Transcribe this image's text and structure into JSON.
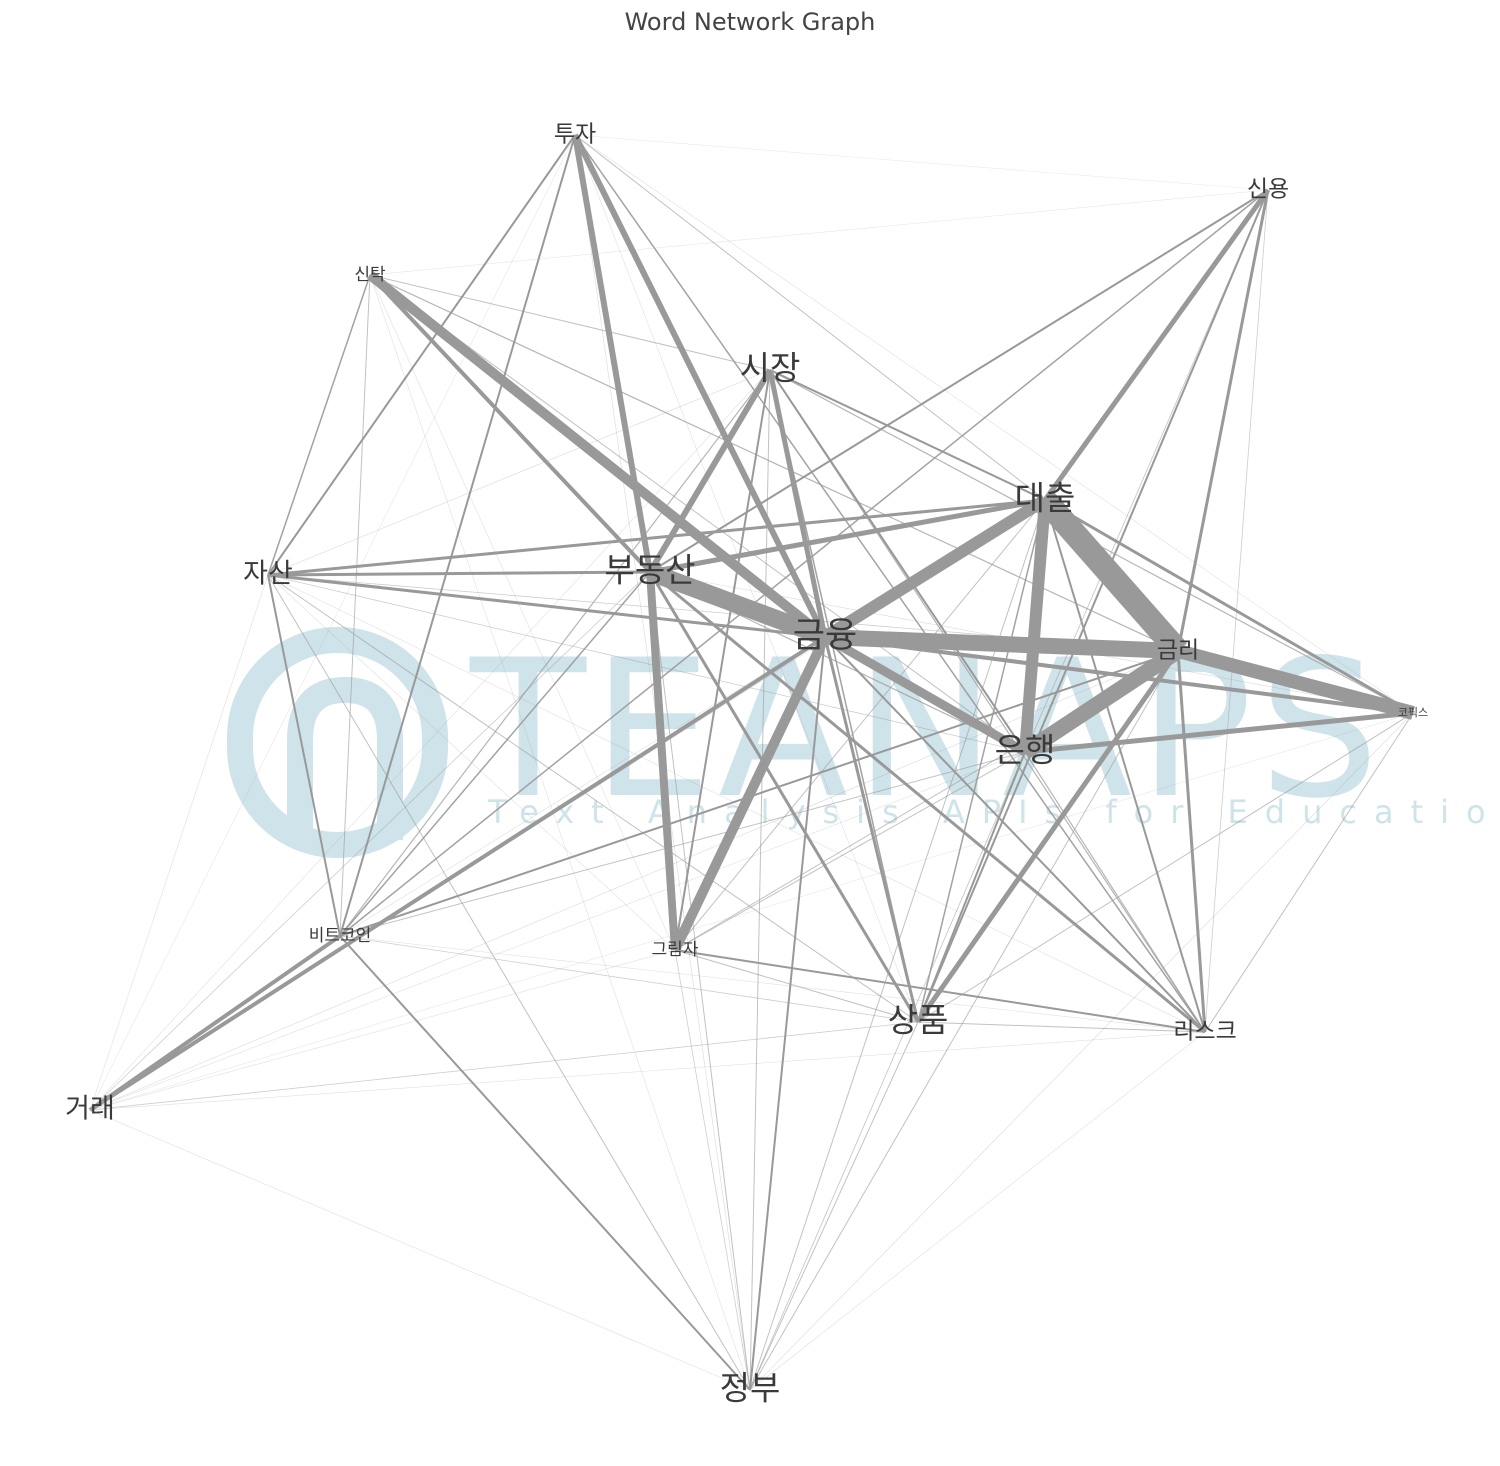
{
  "title": "Word Network Graph",
  "watermark": {
    "brand": "TEANAPS",
    "tagline": "Text Analysis APIs for Education",
    "color": "#cfe3ea"
  },
  "style": {
    "edge_color": "#999999",
    "label_color": "#3a3a3a"
  },
  "nodes": [
    {
      "id": "투자",
      "label": "투자",
      "importance": 2
    },
    {
      "id": "신용",
      "label": "신용",
      "importance": 2
    },
    {
      "id": "신탁",
      "label": "신탁",
      "importance": 1
    },
    {
      "id": "시장",
      "label": "시장",
      "importance": 4
    },
    {
      "id": "대출",
      "label": "대출",
      "importance": 4
    },
    {
      "id": "자산",
      "label": "자산",
      "importance": 3
    },
    {
      "id": "부동산",
      "label": "부동산",
      "importance": 4
    },
    {
      "id": "금융",
      "label": "금융",
      "importance": 5
    },
    {
      "id": "금리",
      "label": "금리",
      "importance": 2
    },
    {
      "id": "코픽스",
      "label": "코픽스",
      "importance": 0
    },
    {
      "id": "은행",
      "label": "은행",
      "importance": 4
    },
    {
      "id": "비트코인",
      "label": "비트코인",
      "importance": 1
    },
    {
      "id": "그림자",
      "label": "그림자",
      "importance": 1
    },
    {
      "id": "상품",
      "label": "상품",
      "importance": 4
    },
    {
      "id": "리스크",
      "label": "리스크",
      "importance": 2
    },
    {
      "id": "거래",
      "label": "거래",
      "importance": 3
    },
    {
      "id": "정부",
      "label": "정부",
      "importance": 4
    }
  ],
  "edges": [
    {
      "source": "대출",
      "target": "금리",
      "weight": 24
    },
    {
      "source": "부동산",
      "target": "금융",
      "weight": 18
    },
    {
      "source": "금융",
      "target": "금리",
      "weight": 16
    },
    {
      "source": "은행",
      "target": "금리",
      "weight": 16
    },
    {
      "source": "금리",
      "target": "코픽스",
      "weight": 14
    },
    {
      "source": "대출",
      "target": "은행",
      "weight": 12
    },
    {
      "source": "금융",
      "target": "대출",
      "weight": 12
    },
    {
      "source": "신탁",
      "target": "금융",
      "weight": 10
    },
    {
      "source": "금융",
      "target": "그림자",
      "weight": 10
    },
    {
      "source": "금융",
      "target": "은행",
      "weight": 9
    },
    {
      "source": "부동산",
      "target": "그림자",
      "weight": 8
    },
    {
      "source": "투자",
      "target": "부동산",
      "weight": 6
    },
    {
      "source": "투자",
      "target": "금융",
      "weight": 6
    },
    {
      "source": "시장",
      "target": "부동산",
      "weight": 6
    },
    {
      "source": "신용",
      "target": "대출",
      "weight": 5
    },
    {
      "source": "시장",
      "target": "금융",
      "weight": 5
    },
    {
      "source": "부동산",
      "target": "대출",
      "weight": 5
    },
    {
      "source": "금리",
      "target": "상품",
      "weight": 5
    },
    {
      "source": "은행",
      "target": "코픽스",
      "weight": 5
    },
    {
      "source": "금융",
      "target": "코픽스",
      "weight": 4
    },
    {
      "source": "신탁",
      "target": "부동산",
      "weight": 4
    },
    {
      "source": "거래",
      "target": "비트코인",
      "weight": 4
    },
    {
      "source": "거래",
      "target": "금융",
      "weight": 4
    },
    {
      "source": "자산",
      "target": "부동산",
      "weight": 3
    },
    {
      "source": "자산",
      "target": "금융",
      "weight": 3
    },
    {
      "source": "자산",
      "target": "대출",
      "weight": 3
    },
    {
      "source": "대출",
      "target": "코픽스",
      "weight": 3
    },
    {
      "source": "부동산",
      "target": "리스크",
      "weight": 3
    },
    {
      "source": "부동산",
      "target": "상품",
      "weight": 3
    },
    {
      "source": "금융",
      "target": "상품",
      "weight": 3
    },
    {
      "source": "금리",
      "target": "리스크",
      "weight": 3
    },
    {
      "source": "신용",
      "target": "금리",
      "weight": 3
    },
    {
      "source": "시장",
      "target": "은행",
      "weight": 2
    },
    {
      "source": "시장",
      "target": "그림자",
      "weight": 2
    },
    {
      "source": "시장",
      "target": "대출",
      "weight": 2
    },
    {
      "source": "신용",
      "target": "부동산",
      "weight": 2
    },
    {
      "source": "신용",
      "target": "상품",
      "weight": 2
    },
    {
      "source": "은행",
      "target": "상품",
      "weight": 2
    },
    {
      "source": "비트코인",
      "target": "금리",
      "weight": 2
    },
    {
      "source": "비트코인",
      "target": "정부",
      "weight": 2
    },
    {
      "source": "자산",
      "target": "비트코인",
      "weight": 2
    },
    {
      "source": "그림자",
      "target": "리스크",
      "weight": 2
    },
    {
      "source": "금융",
      "target": "정부",
      "weight": 2
    },
    {
      "source": "금융",
      "target": "리스크",
      "weight": 2
    },
    {
      "source": "대출",
      "target": "리스크",
      "weight": 2
    },
    {
      "source": "투자",
      "target": "자산",
      "weight": 2
    },
    {
      "source": "투자",
      "target": "비트코인",
      "weight": 2
    },
    {
      "source": "투자",
      "target": "리스크",
      "weight": 1.5
    },
    {
      "source": "투자",
      "target": "대출",
      "weight": 1
    },
    {
      "source": "투자",
      "target": "정부",
      "weight": 0.6
    },
    {
      "source": "투자",
      "target": "코픽스",
      "weight": 0.5
    },
    {
      "source": "투자",
      "target": "상품",
      "weight": 0.5
    },
    {
      "source": "신탁",
      "target": "자산",
      "weight": 1.5
    },
    {
      "source": "신탁",
      "target": "비트코인",
      "weight": 1
    },
    {
      "source": "신탁",
      "target": "금리",
      "weight": 1.2
    },
    {
      "source": "신탁",
      "target": "은행",
      "weight": 1
    },
    {
      "source": "신탁",
      "target": "시장",
      "weight": 1
    },
    {
      "source": "신탁",
      "target": "신용",
      "weight": 0.4
    },
    {
      "source": "신탁",
      "target": "정부",
      "weight": 0.5
    },
    {
      "source": "신탁",
      "target": "그림자",
      "weight": 0.5
    },
    {
      "source": "신용",
      "target": "비트코인",
      "weight": 1.5
    },
    {
      "source": "신용",
      "target": "은행",
      "weight": 0.8
    },
    {
      "source": "신용",
      "target": "리스크",
      "weight": 0.8
    },
    {
      "source": "신용",
      "target": "정부",
      "weight": 0.4
    },
    {
      "source": "신용",
      "target": "투자",
      "weight": 0.3
    },
    {
      "source": "시장",
      "target": "상품",
      "weight": 1.5
    },
    {
      "source": "시장",
      "target": "정부",
      "weight": 1
    },
    {
      "source": "시장",
      "target": "코픽스",
      "weight": 1.2
    },
    {
      "source": "시장",
      "target": "자산",
      "weight": 0.6
    },
    {
      "source": "시장",
      "target": "거래",
      "weight": 0.5
    },
    {
      "source": "시장",
      "target": "비트코인",
      "weight": 1.2
    },
    {
      "source": "시장",
      "target": "리스크",
      "weight": 1.2
    },
    {
      "source": "대출",
      "target": "상품",
      "weight": 1.5
    },
    {
      "source": "대출",
      "target": "정부",
      "weight": 1
    },
    {
      "source": "대출",
      "target": "그림자",
      "weight": 1
    },
    {
      "source": "대출",
      "target": "비트코인",
      "weight": 0.5
    },
    {
      "source": "대출",
      "target": "거래",
      "weight": 0.5
    },
    {
      "source": "자산",
      "target": "정부",
      "weight": 1
    },
    {
      "source": "자산",
      "target": "상품",
      "weight": 1
    },
    {
      "source": "자산",
      "target": "은행",
      "weight": 0.8
    },
    {
      "source": "자산",
      "target": "금리",
      "weight": 0.8
    },
    {
      "source": "자산",
      "target": "리스크",
      "weight": 0.5
    },
    {
      "source": "자산",
      "target": "그림자",
      "weight": 0.5
    },
    {
      "source": "부동산",
      "target": "은행",
      "weight": 1.2
    },
    {
      "source": "부동산",
      "target": "정부",
      "weight": 1
    },
    {
      "source": "부동산",
      "target": "비트코인",
      "weight": 1.5
    },
    {
      "source": "부동산",
      "target": "거래",
      "weight": 0.8
    },
    {
      "source": "부동산",
      "target": "코픽스",
      "weight": 0.6
    },
    {
      "source": "금리",
      "target": "정부",
      "weight": 1
    },
    {
      "source": "금리",
      "target": "그림자",
      "weight": 1
    },
    {
      "source": "코픽스",
      "target": "상품",
      "weight": 1
    },
    {
      "source": "코픽스",
      "target": "리스크",
      "weight": 1
    },
    {
      "source": "코픽스",
      "target": "정부",
      "weight": 0.6
    },
    {
      "source": "은행",
      "target": "리스크",
      "weight": 1.2
    },
    {
      "source": "은행",
      "target": "비트코인",
      "weight": 1
    },
    {
      "source": "은행",
      "target": "정부",
      "weight": 0.8
    },
    {
      "source": "은행",
      "target": "그림자",
      "weight": 1
    },
    {
      "source": "은행",
      "target": "거래",
      "weight": 0.5
    },
    {
      "source": "비트코인",
      "target": "상품",
      "weight": 0.8
    },
    {
      "source": "비트코인",
      "target": "리스크",
      "weight": 0.5
    },
    {
      "source": "그림자",
      "target": "상품",
      "weight": 1
    },
    {
      "source": "그림자",
      "target": "정부",
      "weight": 0.8
    },
    {
      "source": "그림자",
      "target": "거래",
      "weight": 0.5
    },
    {
      "source": "상품",
      "target": "리스크",
      "weight": 1
    },
    {
      "source": "상품",
      "target": "정부",
      "weight": 1
    },
    {
      "source": "상품",
      "target": "거래",
      "weight": 0.8
    },
    {
      "source": "리스크",
      "target": "거래",
      "weight": 0.5
    },
    {
      "source": "리스크",
      "target": "정부",
      "weight": 0.5
    },
    {
      "source": "거래",
      "target": "정부",
      "weight": 0.5
    },
    {
      "source": "거래",
      "target": "자산",
      "weight": 0.5
    },
    {
      "source": "거래",
      "target": "코픽스",
      "weight": 0.4
    },
    {
      "source": "거래",
      "target": "금리",
      "weight": 0.6
    },
    {
      "source": "거래",
      "target": "투자",
      "weight": 0.4
    }
  ]
}
